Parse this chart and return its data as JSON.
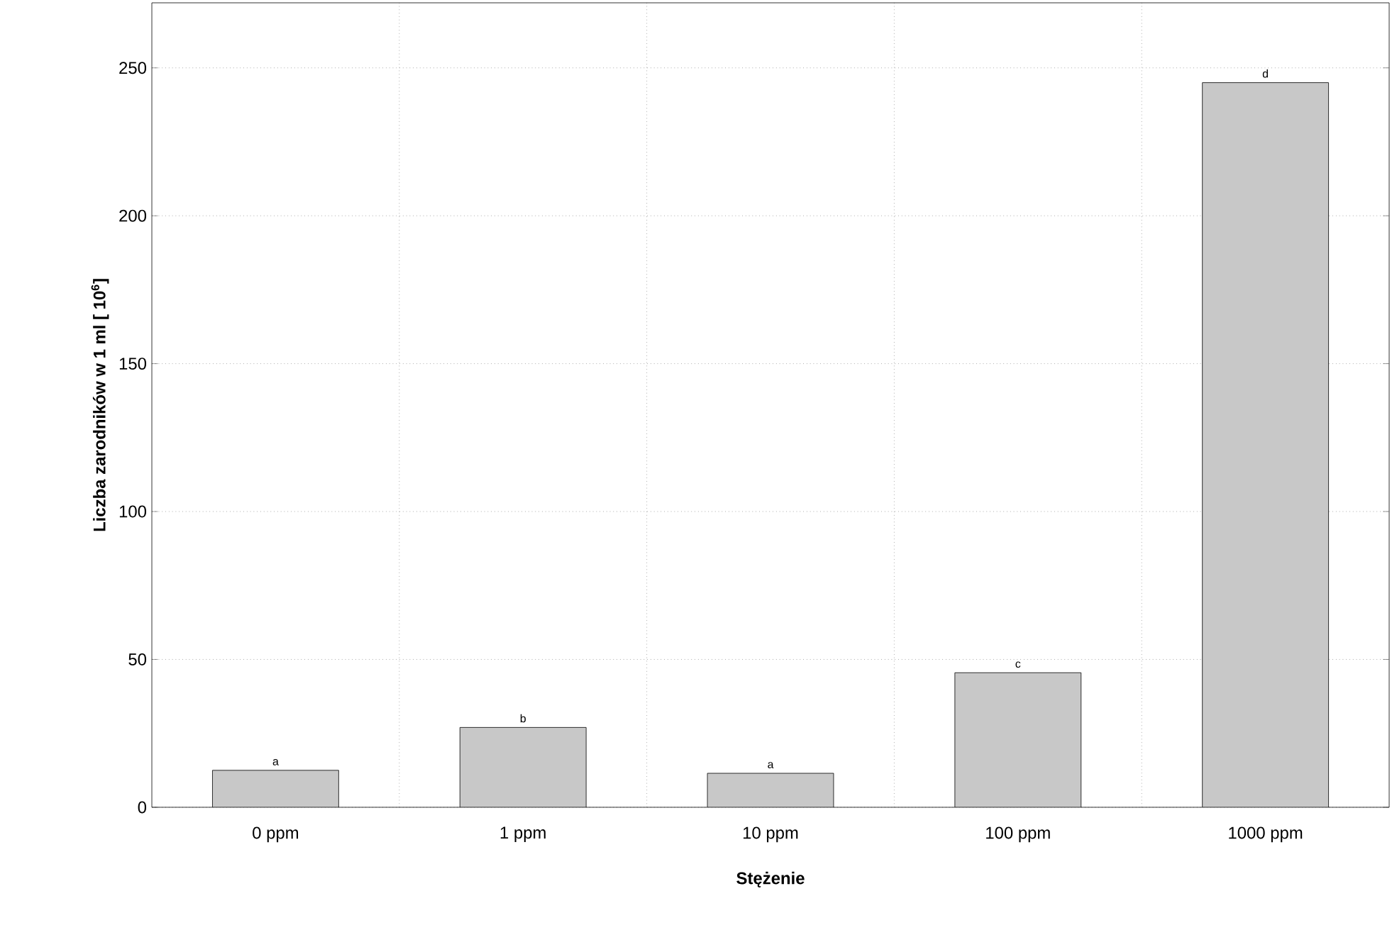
{
  "chart_data": {
    "type": "bar",
    "xlabel": "Stężenie",
    "ylabel": "Liczba zarodników w 1 ml [ 10$^{6}$]",
    "categories": [
      "0 ppm",
      "1 ppm",
      "10 ppm",
      "100 ppm",
      "1000 ppm"
    ],
    "values": [
      12.5,
      27,
      11.5,
      45.5,
      245
    ],
    "color": "#c8c8c8",
    "ylim": [
      0,
      272
    ],
    "yticks": [
      0,
      50,
      100,
      150,
      200,
      250
    ],
    "grid": true,
    "annotations": [
      {
        "text": "a",
        "x": "0 ppm",
        "y": 12.5
      },
      {
        "text": "b",
        "x": "1 ppm",
        "y": 27
      },
      {
        "text": "a",
        "x": "10 ppm",
        "y": 11.5
      },
      {
        "text": "c",
        "x": "100 ppm",
        "y": 45.5
      },
      {
        "text": "d",
        "x": "1000 ppm",
        "y": 245
      }
    ]
  }
}
